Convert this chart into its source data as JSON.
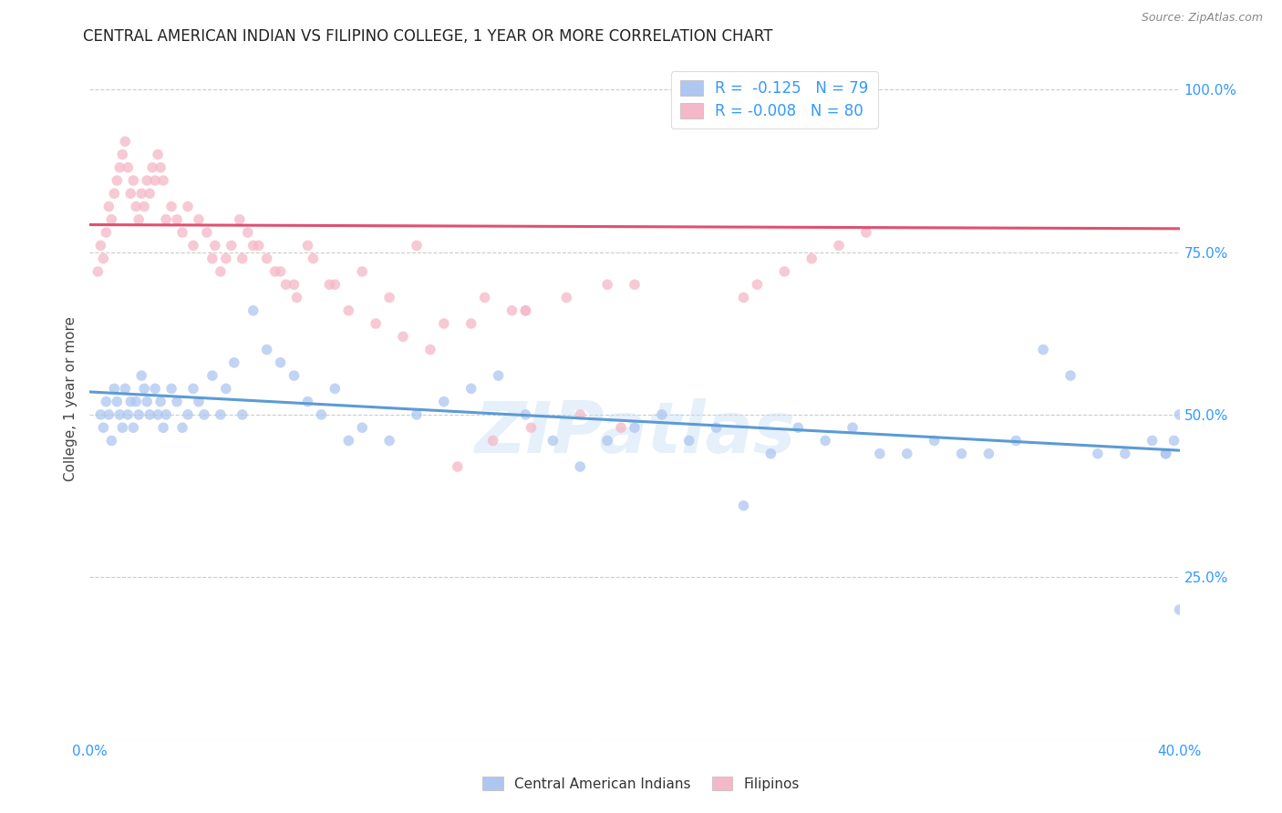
{
  "title": "CENTRAL AMERICAN INDIAN VS FILIPINO COLLEGE, 1 YEAR OR MORE CORRELATION CHART",
  "source": "Source: ZipAtlas.com",
  "ylabel": "College, 1 year or more",
  "yticks": [
    0.0,
    0.25,
    0.5,
    0.75,
    1.0
  ],
  "ytick_labels": [
    "",
    "25.0%",
    "50.0%",
    "75.0%",
    "100.0%"
  ],
  "watermark": "ZIPatlas",
  "legend_label_blue": "R =  -0.125   N = 79",
  "legend_label_pink": "R = -0.008   N = 80",
  "legend_label_bottom_blue": "Central American Indians",
  "legend_label_bottom_pink": "Filipinos",
  "blue_scatter_x": [
    0.004,
    0.005,
    0.006,
    0.007,
    0.008,
    0.009,
    0.01,
    0.011,
    0.012,
    0.013,
    0.014,
    0.015,
    0.016,
    0.017,
    0.018,
    0.019,
    0.02,
    0.021,
    0.022,
    0.024,
    0.025,
    0.026,
    0.027,
    0.028,
    0.03,
    0.032,
    0.034,
    0.036,
    0.038,
    0.04,
    0.042,
    0.045,
    0.048,
    0.05,
    0.053,
    0.056,
    0.06,
    0.065,
    0.07,
    0.075,
    0.08,
    0.085,
    0.09,
    0.095,
    0.1,
    0.11,
    0.12,
    0.13,
    0.14,
    0.15,
    0.16,
    0.17,
    0.18,
    0.19,
    0.2,
    0.21,
    0.22,
    0.23,
    0.24,
    0.25,
    0.26,
    0.27,
    0.28,
    0.29,
    0.3,
    0.31,
    0.32,
    0.33,
    0.34,
    0.35,
    0.36,
    0.37,
    0.38,
    0.39,
    0.395,
    0.4,
    0.4,
    0.398,
    0.395
  ],
  "blue_scatter_y": [
    0.5,
    0.48,
    0.52,
    0.5,
    0.46,
    0.54,
    0.52,
    0.5,
    0.48,
    0.54,
    0.5,
    0.52,
    0.48,
    0.52,
    0.5,
    0.56,
    0.54,
    0.52,
    0.5,
    0.54,
    0.5,
    0.52,
    0.48,
    0.5,
    0.54,
    0.52,
    0.48,
    0.5,
    0.54,
    0.52,
    0.5,
    0.56,
    0.5,
    0.54,
    0.58,
    0.5,
    0.66,
    0.6,
    0.58,
    0.56,
    0.52,
    0.5,
    0.54,
    0.46,
    0.48,
    0.46,
    0.5,
    0.52,
    0.54,
    0.56,
    0.5,
    0.46,
    0.42,
    0.46,
    0.48,
    0.5,
    0.46,
    0.48,
    0.36,
    0.44,
    0.48,
    0.46,
    0.48,
    0.44,
    0.44,
    0.46,
    0.44,
    0.44,
    0.46,
    0.6,
    0.56,
    0.44,
    0.44,
    0.46,
    0.44,
    0.5,
    0.2,
    0.46,
    0.44
  ],
  "pink_scatter_x": [
    0.003,
    0.004,
    0.005,
    0.006,
    0.007,
    0.008,
    0.009,
    0.01,
    0.011,
    0.012,
    0.013,
    0.014,
    0.015,
    0.016,
    0.017,
    0.018,
    0.019,
    0.02,
    0.021,
    0.022,
    0.023,
    0.024,
    0.025,
    0.026,
    0.027,
    0.028,
    0.03,
    0.032,
    0.034,
    0.036,
    0.038,
    0.04,
    0.043,
    0.046,
    0.05,
    0.055,
    0.06,
    0.065,
    0.07,
    0.075,
    0.08,
    0.09,
    0.1,
    0.11,
    0.12,
    0.13,
    0.145,
    0.16,
    0.2,
    0.24,
    0.245,
    0.255,
    0.265,
    0.275,
    0.285,
    0.16,
    0.175,
    0.19,
    0.14,
    0.155,
    0.045,
    0.048,
    0.052,
    0.056,
    0.058,
    0.062,
    0.068,
    0.072,
    0.076,
    0.082,
    0.088,
    0.095,
    0.105,
    0.115,
    0.125,
    0.135,
    0.148,
    0.162,
    0.18,
    0.195
  ],
  "pink_scatter_y": [
    0.72,
    0.76,
    0.74,
    0.78,
    0.82,
    0.8,
    0.84,
    0.86,
    0.88,
    0.9,
    0.92,
    0.88,
    0.84,
    0.86,
    0.82,
    0.8,
    0.84,
    0.82,
    0.86,
    0.84,
    0.88,
    0.86,
    0.9,
    0.88,
    0.86,
    0.8,
    0.82,
    0.8,
    0.78,
    0.82,
    0.76,
    0.8,
    0.78,
    0.76,
    0.74,
    0.8,
    0.76,
    0.74,
    0.72,
    0.7,
    0.76,
    0.7,
    0.72,
    0.68,
    0.76,
    0.64,
    0.68,
    0.66,
    0.7,
    0.68,
    0.7,
    0.72,
    0.74,
    0.76,
    0.78,
    0.66,
    0.68,
    0.7,
    0.64,
    0.66,
    0.74,
    0.72,
    0.76,
    0.74,
    0.78,
    0.76,
    0.72,
    0.7,
    0.68,
    0.74,
    0.7,
    0.66,
    0.64,
    0.62,
    0.6,
    0.42,
    0.46,
    0.48,
    0.5,
    0.48
  ],
  "blue_line_x": [
    0.0,
    0.4
  ],
  "blue_line_y": [
    0.535,
    0.445
  ],
  "pink_line_x": [
    0.0,
    0.4
  ],
  "pink_line_y": [
    0.792,
    0.786
  ],
  "xlim": [
    0.0,
    0.4
  ],
  "ylim": [
    0.0,
    1.05
  ],
  "grid_color": "#cccccc",
  "grid_style": "--",
  "blue_color": "#aec6f0",
  "pink_color": "#f5b8c8",
  "blue_line_color": "#5b9bd5",
  "pink_line_color": "#e05070",
  "title_fontsize": 12,
  "axis_label_color": "#3399ff",
  "tick_label_color": "#3399ff",
  "scatter_size": 70,
  "scatter_alpha": 0.75
}
